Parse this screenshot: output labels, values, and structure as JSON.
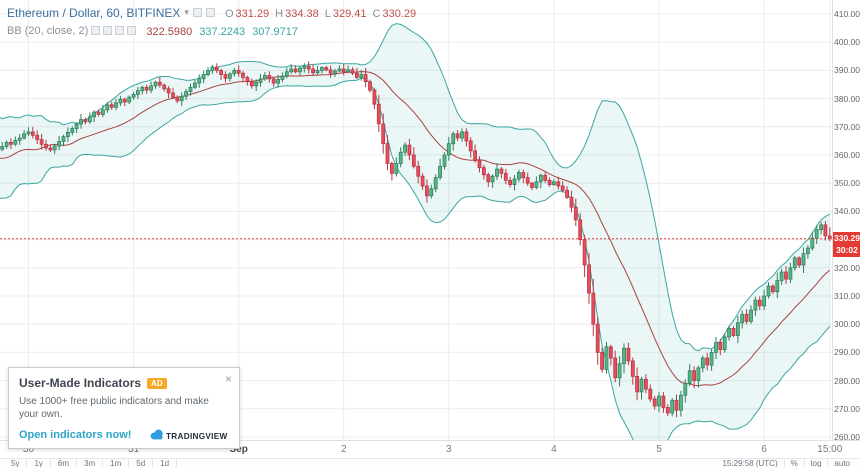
{
  "colors": {
    "background": "#ffffff",
    "grid": "#ececec",
    "axis_text": "#666666",
    "up_fill": "#53b987",
    "up_border": "#357f5f",
    "down_fill": "#eb4d5c",
    "down_border": "#b43a47",
    "bb_band": "#3aa7a3",
    "bb_fill": "rgba(58,167,163,0.10)",
    "bb_basis": "#a8433e",
    "last_price_line": "#e53935",
    "last_price_bg": "#e53935",
    "title_blue": "#3c6e9e",
    "ohlc_value_red": "#c0504d",
    "link_teal": "#2da5c7",
    "badge_orange": "#f8a727"
  },
  "legend": {
    "title": "Ethereum / Dollar, 60, BITFINEX",
    "ohlc": [
      {
        "k": "O",
        "v": "331.29"
      },
      {
        "k": "H",
        "v": "334.38"
      },
      {
        "k": "L",
        "v": "329.41"
      },
      {
        "k": "C",
        "v": "330.29"
      }
    ],
    "indicator_label": "BB (20, close, 2)",
    "indicator_values": [
      {
        "v": "322.5980",
        "c": "basis"
      },
      {
        "v": "337.2243",
        "c": "band"
      },
      {
        "v": "307.9717",
        "c": "band"
      }
    ]
  },
  "popup": {
    "title": "User-Made Indicators",
    "badge": "AD",
    "close": "×",
    "body": "Use 1000+ free public indicators and make your own.",
    "link": "Open indicators now!",
    "logo_text": "TRADINGVIEW"
  },
  "bottom_bar": {
    "ranges": [
      "5y",
      "1y",
      "6m",
      "3m",
      "1m",
      "5d",
      "1d"
    ],
    "clock": "15:29:58 (UTC)",
    "scales": [
      "%",
      "log",
      "auto"
    ]
  },
  "chart_data": {
    "type": "candlestick",
    "symbol": "Ethereum / Dollar",
    "interval": "60",
    "exchange": "BITFINEX",
    "title": "Ethereum / Dollar, 60, BITFINEX",
    "y_axis": {
      "min": 260,
      "max": 410,
      "step": 10
    },
    "x_ticks": [
      {
        "label": "30",
        "index": 6
      },
      {
        "label": "31",
        "index": 30
      },
      {
        "label": "Sep",
        "index": 54,
        "major": true
      },
      {
        "label": "2",
        "index": 78
      },
      {
        "label": "3",
        "index": 102
      },
      {
        "label": "4",
        "index": 126
      },
      {
        "label": "5",
        "index": 150
      },
      {
        "label": "6",
        "index": 174
      },
      {
        "label": "15:00",
        "index": 189
      }
    ],
    "bb": {
      "period": 20,
      "mult": 2
    },
    "bb_lead_in": [
      368,
      360,
      352,
      345.5,
      350,
      358,
      366,
      370,
      363,
      355,
      348,
      352.5,
      360,
      367,
      371,
      365,
      358,
      353,
      357,
      362
    ],
    "closes": [
      363.0,
      364.5,
      363.8,
      365.2,
      366.0,
      367.5,
      368.2,
      367.0,
      365.5,
      363.8,
      362.5,
      361.8,
      363.2,
      364.8,
      366.5,
      368.0,
      369.4,
      371.0,
      372.6,
      371.8,
      373.5,
      375.2,
      374.4,
      376.0,
      377.8,
      376.9,
      378.5,
      379.8,
      378.8,
      380.5,
      381.5,
      382.8,
      384.0,
      383.0,
      384.5,
      385.8,
      384.8,
      383.5,
      382.0,
      380.5,
      379.2,
      380.8,
      382.5,
      384.0,
      385.5,
      387.0,
      388.5,
      390.0,
      391.2,
      390.0,
      388.5,
      387.2,
      388.8,
      390.0,
      389.0,
      387.5,
      386.0,
      384.5,
      385.8,
      387.0,
      388.2,
      387.0,
      385.5,
      386.8,
      388.0,
      389.5,
      390.5,
      389.5,
      390.8,
      391.5,
      390.5,
      389.2,
      390.0,
      391.0,
      390.2,
      389.0,
      389.8,
      390.5,
      389.5,
      390.2,
      389.0,
      387.5,
      388.5,
      386.0,
      383.0,
      378.0,
      371.0,
      364.0,
      357.0,
      353.5,
      357.0,
      361.0,
      363.5,
      360.0,
      356.0,
      352.5,
      349.0,
      345.5,
      348.0,
      352.0,
      356.0,
      360.0,
      364.0,
      367.5,
      366.0,
      368.2,
      365.0,
      361.5,
      358.0,
      355.5,
      353.0,
      350.5,
      352.5,
      355.0,
      353.5,
      351.0,
      349.5,
      351.5,
      353.8,
      352.0,
      350.0,
      348.5,
      350.5,
      352.8,
      351.0,
      349.5,
      350.5,
      349.0,
      347.5,
      345.0,
      341.5,
      337.0,
      330.0,
      321.0,
      311.0,
      300.0,
      290.0,
      284.0,
      292.0,
      288.0,
      281.0,
      286.0,
      291.5,
      287.0,
      281.5,
      276.0,
      280.5,
      277.0,
      273.5,
      271.0,
      274.5,
      270.5,
      268.5,
      273.0,
      269.5,
      274.8,
      279.0,
      283.5,
      280.0,
      284.5,
      288.0,
      285.5,
      290.0,
      293.5,
      291.0,
      295.5,
      298.5,
      296.0,
      300.5,
      303.5,
      301.0,
      305.0,
      308.5,
      306.5,
      310.0,
      313.5,
      311.5,
      315.5,
      318.5,
      316.0,
      320.0,
      323.5,
      321.0,
      325.0,
      327.0,
      330.5,
      333.5,
      335.2,
      331.29,
      330.29
    ],
    "last_candle": {
      "o": 331.29,
      "h": 334.38,
      "l": 329.41,
      "c": 330.29
    },
    "last_price": 330.29,
    "last_price_label": "330.29",
    "countdown": "30:02"
  }
}
